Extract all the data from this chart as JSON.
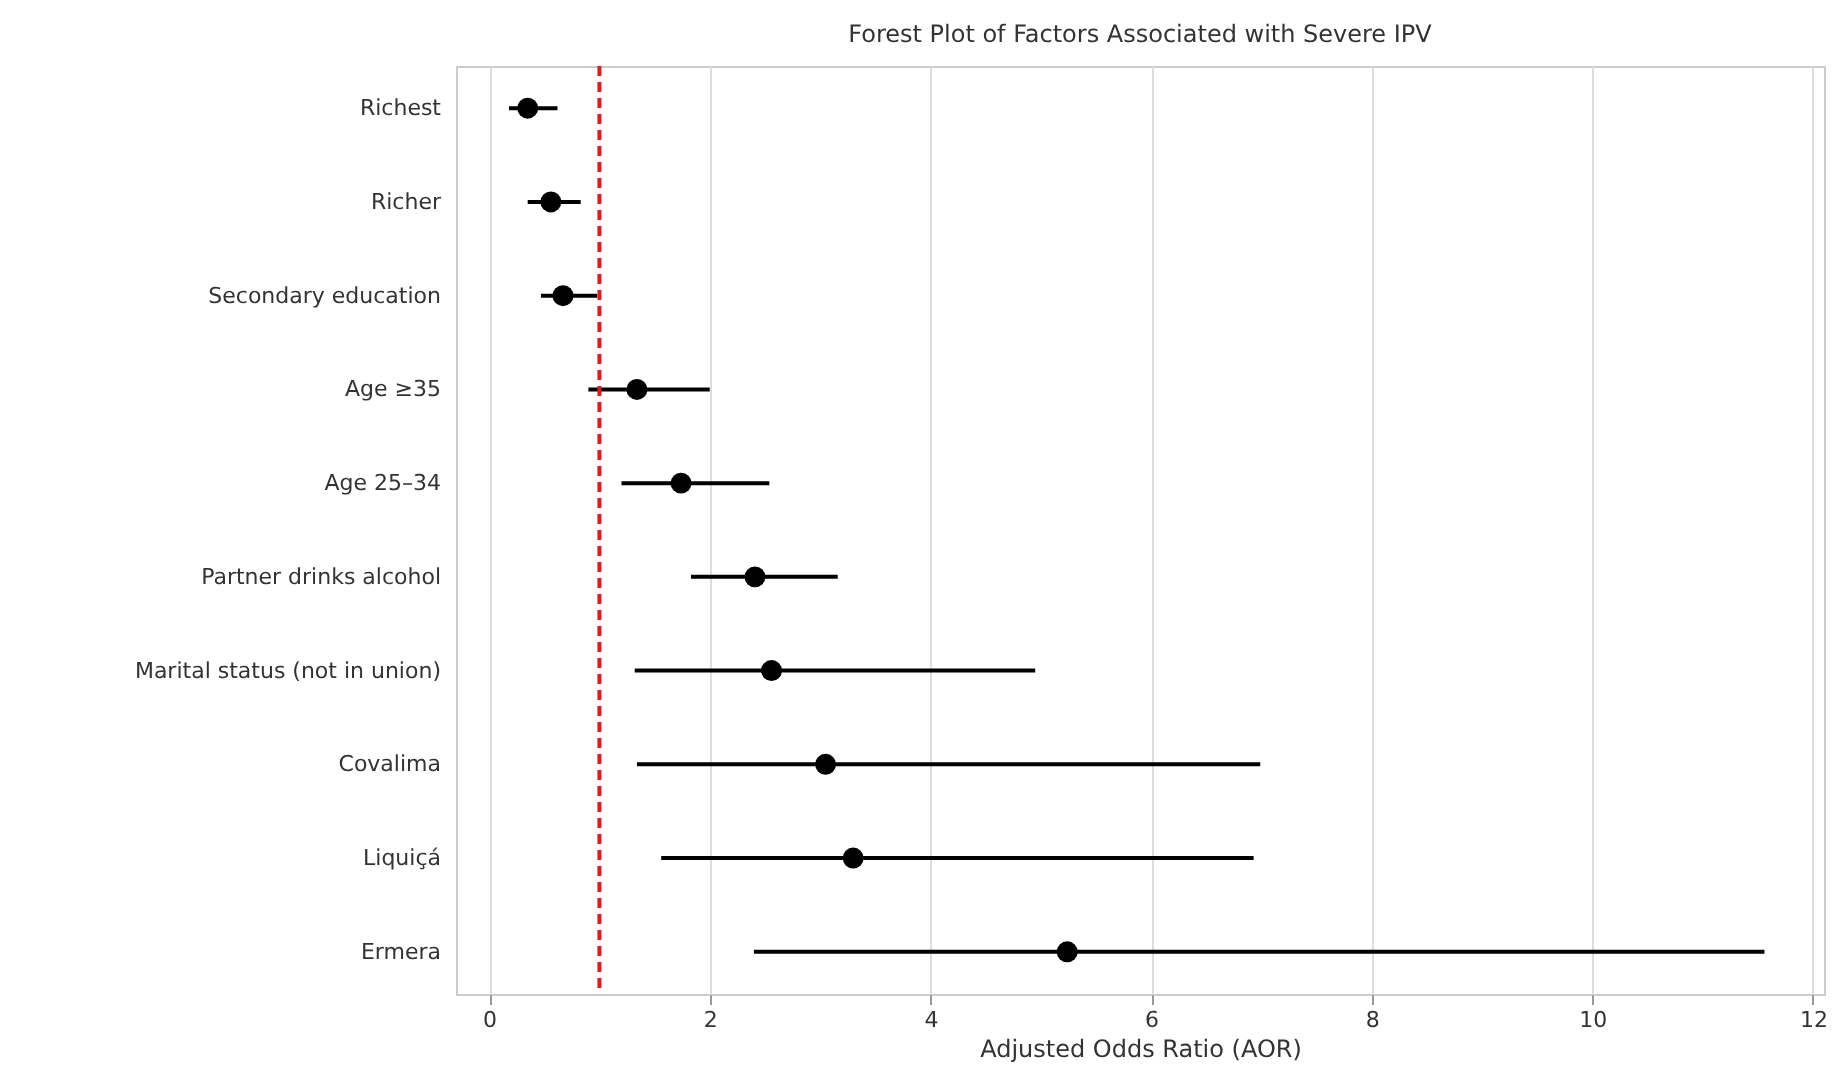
{
  "chart_data": {
    "type": "scatter",
    "orientation": "horizontal",
    "title": "Forest Plot of Factors Associated with Severe IPV",
    "xlabel": "Adjusted Odds Ratio (AOR)",
    "categories": [
      "Richest",
      "Richer",
      "Secondary education",
      "Age ≥35",
      "Age 25–34",
      "Partner drinks alcohol",
      "Marital status (not in union)",
      "Covalima",
      "Liquiçá",
      "Ermera"
    ],
    "series": [
      {
        "color": "#000000",
        "values": [
          0.35,
          0.56,
          0.67,
          1.34,
          1.74,
          2.41,
          2.56,
          3.05,
          3.3,
          5.24
        ],
        "errors": [
          [
            0.18,
            0.62
          ],
          [
            0.35,
            0.83
          ],
          [
            0.47,
            0.98
          ],
          [
            0.9,
            2.0
          ],
          [
            1.2,
            2.54
          ],
          [
            1.83,
            3.16
          ],
          [
            1.32,
            4.95
          ],
          [
            1.34,
            6.99
          ],
          [
            1.56,
            6.93
          ],
          [
            2.4,
            11.56
          ]
        ]
      }
    ],
    "xlim": [
      -0.3,
      12.1
    ],
    "xticks": [
      0,
      2,
      4,
      6,
      8,
      10,
      12
    ],
    "grid": "x",
    "marker": "circle",
    "ref_lines": [
      {
        "axis": "x",
        "value": 1,
        "color": "#e41a1c",
        "line_style": "dashed"
      }
    ]
  }
}
